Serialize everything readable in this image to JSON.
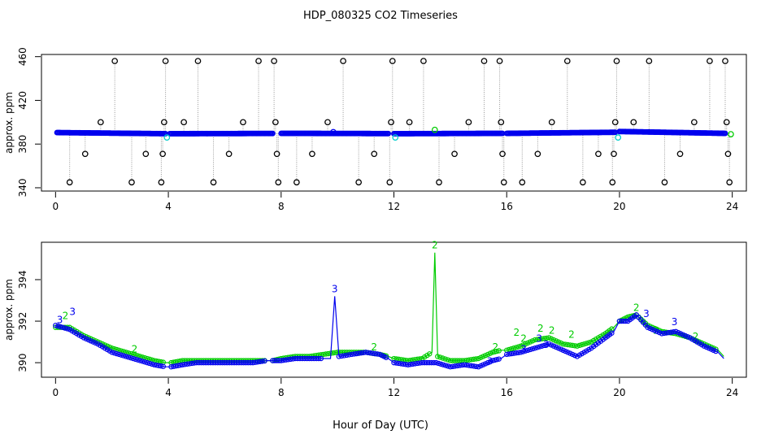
{
  "chart_data": [
    {
      "type": "scatter",
      "title": "HDP_080325  CO2 Timeseries",
      "xlabel": "",
      "ylabel": "approx. ppm",
      "xlim": [
        -0.5,
        24.5
      ],
      "ylim": [
        337,
        462
      ],
      "x_ticks": [
        0,
        4,
        8,
        12,
        16,
        20,
        24
      ],
      "y_ticks": [
        340,
        380,
        420,
        460
      ],
      "y_tick_labels": [
        "340",
        "380",
        "420",
        "460"
      ],
      "colors": {
        "black": "#000000",
        "blue": "#0000ee",
        "cyan": "#00cccc",
        "trace": "#999999",
        "green": "#00cc00"
      },
      "segments": [
        {
          "x_start": 0.05,
          "x_end": 3.9,
          "y_start": 390.5,
          "y_end": 389.5
        },
        {
          "x_start": 4.05,
          "x_end": 7.7,
          "y_start": 389.5,
          "y_end": 389.7
        },
        {
          "x_start": 8.0,
          "x_end": 11.8,
          "y_start": 389.8,
          "y_end": 389.6
        },
        {
          "x_start": 12.0,
          "x_end": 15.85,
          "y_start": 389.5,
          "y_end": 389.8
        },
        {
          "x_start": 16.0,
          "x_end": 19.85,
          "y_start": 389.8,
          "y_end": 390.8
        },
        {
          "x_start": 20.0,
          "x_end": 23.75,
          "y_start": 391.5,
          "y_end": 389.8
        }
      ],
      "outliers": [
        {
          "x": 0.5,
          "y": 345
        },
        {
          "x": 1.05,
          "y": 371
        },
        {
          "x": 1.6,
          "y": 400
        },
        {
          "x": 2.1,
          "y": 456
        },
        {
          "x": 2.7,
          "y": 345
        },
        {
          "x": 3.2,
          "y": 371
        },
        {
          "x": 3.75,
          "y": 345
        },
        {
          "x": 3.8,
          "y": 371
        },
        {
          "x": 3.85,
          "y": 400
        },
        {
          "x": 3.9,
          "y": 456
        },
        {
          "x": 4.55,
          "y": 400
        },
        {
          "x": 5.05,
          "y": 456
        },
        {
          "x": 5.6,
          "y": 345
        },
        {
          "x": 6.15,
          "y": 371
        },
        {
          "x": 6.65,
          "y": 400
        },
        {
          "x": 7.2,
          "y": 456
        },
        {
          "x": 7.75,
          "y": 456
        },
        {
          "x": 7.8,
          "y": 400
        },
        {
          "x": 7.85,
          "y": 371
        },
        {
          "x": 7.9,
          "y": 345
        },
        {
          "x": 8.55,
          "y": 345
        },
        {
          "x": 9.1,
          "y": 371
        },
        {
          "x": 9.65,
          "y": 400
        },
        {
          "x": 10.2,
          "y": 456
        },
        {
          "x": 10.75,
          "y": 345
        },
        {
          "x": 11.3,
          "y": 371
        },
        {
          "x": 11.85,
          "y": 345
        },
        {
          "x": 11.9,
          "y": 400
        },
        {
          "x": 11.95,
          "y": 456
        },
        {
          "x": 12.55,
          "y": 400
        },
        {
          "x": 13.05,
          "y": 456
        },
        {
          "x": 13.6,
          "y": 345
        },
        {
          "x": 14.15,
          "y": 371
        },
        {
          "x": 14.65,
          "y": 400
        },
        {
          "x": 15.2,
          "y": 456
        },
        {
          "x": 15.75,
          "y": 456
        },
        {
          "x": 15.8,
          "y": 400
        },
        {
          "x": 15.85,
          "y": 371
        },
        {
          "x": 15.9,
          "y": 345
        },
        {
          "x": 16.55,
          "y": 345
        },
        {
          "x": 17.1,
          "y": 371
        },
        {
          "x": 17.6,
          "y": 400
        },
        {
          "x": 18.15,
          "y": 456
        },
        {
          "x": 18.7,
          "y": 345
        },
        {
          "x": 19.25,
          "y": 371
        },
        {
          "x": 19.75,
          "y": 345
        },
        {
          "x": 19.8,
          "y": 371
        },
        {
          "x": 19.85,
          "y": 400
        },
        {
          "x": 19.9,
          "y": 456
        },
        {
          "x": 20.5,
          "y": 400
        },
        {
          "x": 21.05,
          "y": 456
        },
        {
          "x": 21.6,
          "y": 345
        },
        {
          "x": 22.15,
          "y": 371
        },
        {
          "x": 22.65,
          "y": 400
        },
        {
          "x": 23.2,
          "y": 456
        },
        {
          "x": 23.75,
          "y": 456
        },
        {
          "x": 23.8,
          "y": 400
        },
        {
          "x": 23.85,
          "y": 371
        },
        {
          "x": 23.9,
          "y": 345
        }
      ],
      "highlights": [
        {
          "x": 3.95,
          "y": 386,
          "color": "cyan"
        },
        {
          "x": 9.85,
          "y": 391,
          "color": "blue"
        },
        {
          "x": 12.05,
          "y": 386,
          "color": "cyan"
        },
        {
          "x": 13.45,
          "y": 393,
          "color": "green"
        },
        {
          "x": 19.95,
          "y": 386,
          "color": "cyan"
        },
        {
          "x": 23.95,
          "y": 389,
          "color": "green"
        }
      ]
    },
    {
      "type": "scatter",
      "title": "",
      "xlabel": "Hour of Day (UTC)",
      "ylabel": "approx. ppm",
      "xlim": [
        -0.5,
        24.5
      ],
      "ylim": [
        389.3,
        395.8
      ],
      "x_ticks": [
        0,
        4,
        8,
        12,
        16,
        20,
        24
      ],
      "y_ticks": [
        390,
        392,
        394
      ],
      "y_tick_labels": [
        "390",
        "392",
        "394"
      ],
      "colors": {
        "series_3": "#0000ee",
        "series_2": "#00cc00"
      },
      "series": [
        {
          "marker_label": "3",
          "color": "#0000ee",
          "x": [
            0.0,
            0.5,
            1.0,
            1.5,
            2.0,
            2.5,
            3.0,
            3.5,
            3.9,
            4.1,
            4.5,
            5.0,
            5.5,
            6.0,
            6.5,
            7.0,
            7.5,
            7.7,
            8.0,
            8.5,
            9.0,
            9.5,
            9.75,
            9.9,
            10.05,
            10.5,
            11.0,
            11.5,
            11.8,
            12.0,
            12.5,
            13.0,
            13.5,
            14.0,
            14.5,
            15.0,
            15.5,
            15.8,
            16.0,
            16.5,
            17.0,
            17.5,
            18.0,
            18.5,
            19.0,
            19.5,
            19.8,
            20.0,
            20.3,
            20.6,
            21.0,
            21.5,
            22.0,
            22.5,
            23.0,
            23.5,
            23.7
          ],
          "y": [
            391.8,
            391.6,
            391.2,
            390.9,
            390.5,
            390.3,
            390.1,
            389.9,
            389.8,
            389.8,
            389.9,
            390.0,
            390.0,
            390.0,
            390.0,
            390.0,
            390.1,
            390.1,
            390.1,
            390.2,
            390.2,
            390.2,
            390.2,
            393.2,
            390.3,
            390.4,
            390.5,
            390.4,
            390.2,
            390.0,
            389.9,
            390.0,
            390.0,
            389.8,
            389.9,
            389.8,
            390.1,
            390.2,
            390.4,
            390.5,
            390.7,
            390.9,
            390.6,
            390.3,
            390.7,
            391.2,
            391.5,
            392.0,
            392.0,
            392.3,
            391.7,
            391.4,
            391.5,
            391.2,
            390.8,
            390.5,
            390.2
          ],
          "labels": [
            {
              "x": 0.15,
              "y": 391.9
            },
            {
              "x": 0.6,
              "y": 392.3
            },
            {
              "x": 9.9,
              "y": 393.4
            },
            {
              "x": 15.4,
              "y": 389.9
            },
            {
              "x": 16.6,
              "y": 390.5
            },
            {
              "x": 17.4,
              "y": 390.7
            },
            {
              "x": 17.15,
              "y": 391.0
            },
            {
              "x": 20.95,
              "y": 392.2
            },
            {
              "x": 21.95,
              "y": 391.8
            }
          ]
        },
        {
          "marker_label": "2",
          "color": "#00cc00",
          "x": [
            0.0,
            0.5,
            1.0,
            1.5,
            2.0,
            2.5,
            3.0,
            3.5,
            3.9,
            4.1,
            4.5,
            5.0,
            5.5,
            6.0,
            6.5,
            7.0,
            7.5,
            7.7,
            8.0,
            8.5,
            9.0,
            9.5,
            10.0,
            10.5,
            11.0,
            11.5,
            11.8,
            12.0,
            12.5,
            13.0,
            13.35,
            13.45,
            13.55,
            14.0,
            14.5,
            15.0,
            15.5,
            15.8,
            16.0,
            16.5,
            17.0,
            17.5,
            18.0,
            18.5,
            19.0,
            19.5,
            19.8,
            20.0,
            20.3,
            20.6,
            21.0,
            21.5,
            22.0,
            22.5,
            23.0,
            23.5,
            23.7
          ],
          "y": [
            391.7,
            391.7,
            391.3,
            391.0,
            390.7,
            390.5,
            390.3,
            390.1,
            390.0,
            390.0,
            390.1,
            390.1,
            390.1,
            390.1,
            390.1,
            390.1,
            390.1,
            390.1,
            390.2,
            390.3,
            390.3,
            390.4,
            390.5,
            390.5,
            390.5,
            390.4,
            390.3,
            390.2,
            390.1,
            390.2,
            390.5,
            395.3,
            390.3,
            390.1,
            390.1,
            390.2,
            390.5,
            390.6,
            390.6,
            390.8,
            391.1,
            391.2,
            390.9,
            390.8,
            391.0,
            391.4,
            391.7,
            392.0,
            392.2,
            392.3,
            391.8,
            391.5,
            391.4,
            391.2,
            390.9,
            390.6,
            390.3
          ],
          "labels": [
            {
              "x": 0.35,
              "y": 392.1
            },
            {
              "x": 13.45,
              "y": 395.5
            },
            {
              "x": 2.8,
              "y": 390.5
            },
            {
              "x": 11.3,
              "y": 390.6
            },
            {
              "x": 15.6,
              "y": 390.6
            },
            {
              "x": 16.35,
              "y": 391.3
            },
            {
              "x": 16.6,
              "y": 391.0
            },
            {
              "x": 17.2,
              "y": 391.5
            },
            {
              "x": 17.6,
              "y": 391.4
            },
            {
              "x": 18.3,
              "y": 391.2
            },
            {
              "x": 20.6,
              "y": 392.5
            },
            {
              "x": 21.3,
              "y": 391.4
            },
            {
              "x": 22.7,
              "y": 391.1
            }
          ]
        }
      ]
    }
  ]
}
